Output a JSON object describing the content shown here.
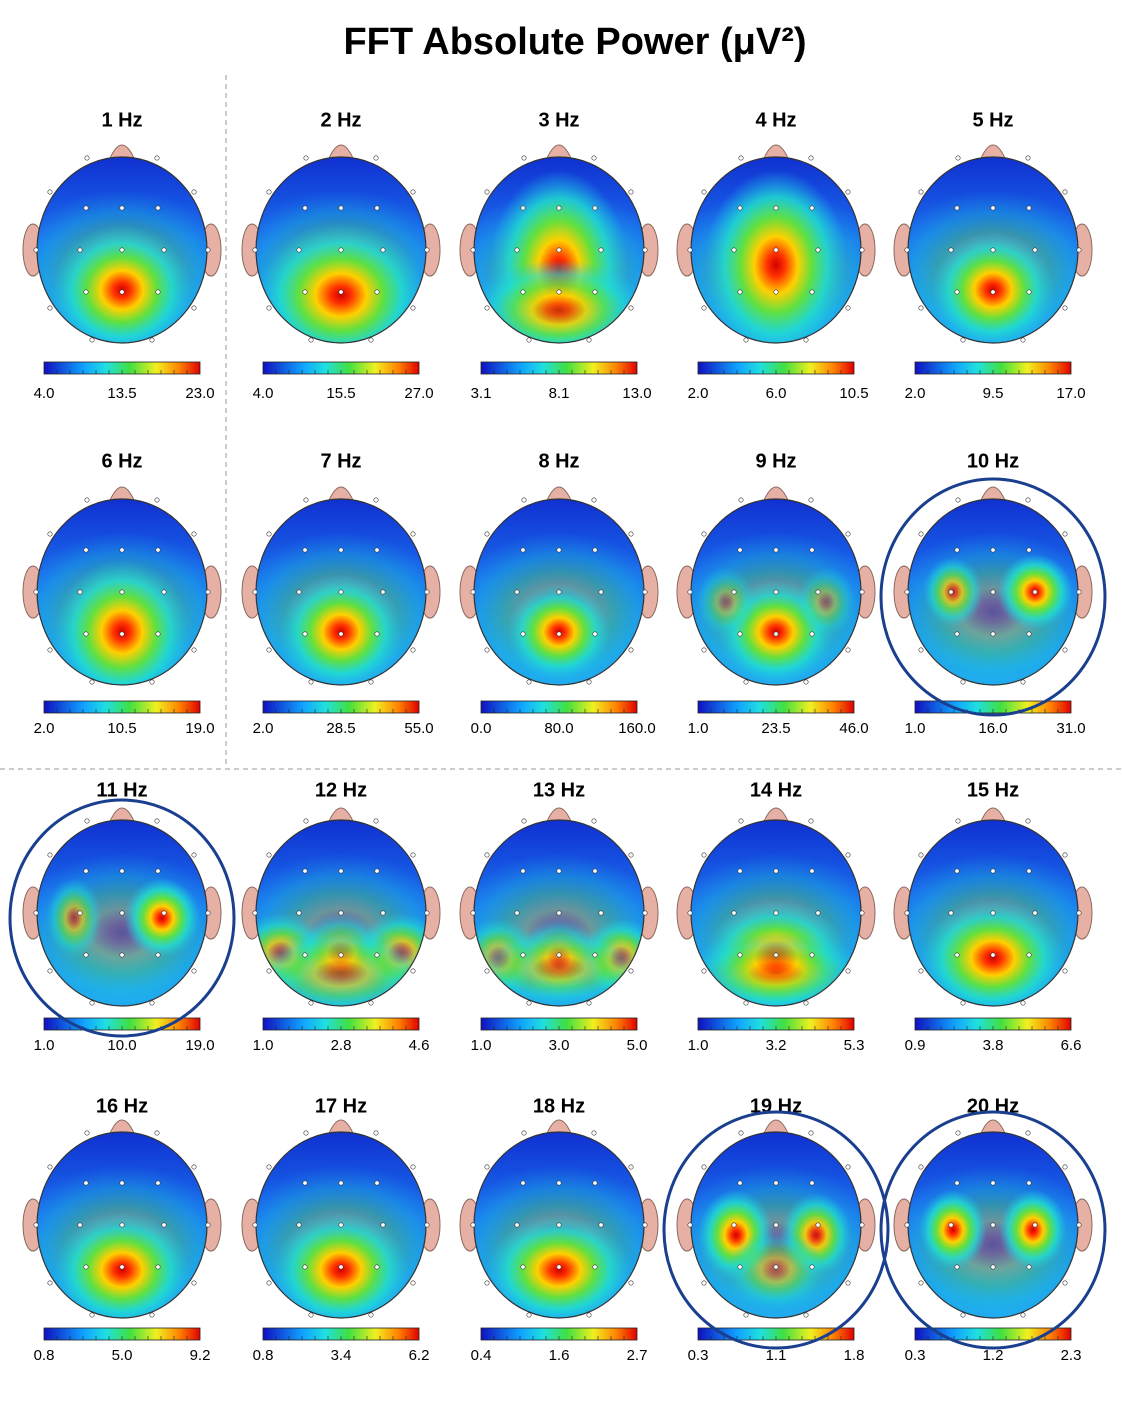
{
  "title": "FFT Absolute Power (μV²)",
  "maps": [
    {
      "title": "1 Hz",
      "scale": [
        "4.0",
        "13.5",
        "23.0"
      ],
      "highlighted": false
    },
    {
      "title": "2 Hz",
      "scale": [
        "4.0",
        "15.5",
        "27.0"
      ],
      "highlighted": false
    },
    {
      "title": "3 Hz",
      "scale": [
        "3.1",
        "8.1",
        "13.0"
      ],
      "highlighted": false
    },
    {
      "title": "4 Hz",
      "scale": [
        "2.0",
        "6.0",
        "10.5"
      ],
      "highlighted": false
    },
    {
      "title": "5 Hz",
      "scale": [
        "2.0",
        "9.5",
        "17.0"
      ],
      "highlighted": false
    },
    {
      "title": "6 Hz",
      "scale": [
        "2.0",
        "10.5",
        "19.0"
      ],
      "highlighted": false
    },
    {
      "title": "7 Hz",
      "scale": [
        "2.0",
        "28.5",
        "55.0"
      ],
      "highlighted": false
    },
    {
      "title": "8 Hz",
      "scale": [
        "0.0",
        "80.0",
        "160.0"
      ],
      "highlighted": false
    },
    {
      "title": "9 Hz",
      "scale": [
        "1.0",
        "23.5",
        "46.0"
      ],
      "highlighted": false
    },
    {
      "title": "10 Hz",
      "scale": [
        "1.0",
        "16.0",
        "31.0"
      ],
      "highlighted": true
    },
    {
      "title": "11 Hz",
      "scale": [
        "1.0",
        "10.0",
        "19.0"
      ],
      "highlighted": true
    },
    {
      "title": "12 Hz",
      "scale": [
        "1.0",
        "2.8",
        "4.6"
      ],
      "highlighted": false
    },
    {
      "title": "13 Hz",
      "scale": [
        "1.0",
        "3.0",
        "5.0"
      ],
      "highlighted": false
    },
    {
      "title": "14 Hz",
      "scale": [
        "1.0",
        "3.2",
        "5.3"
      ],
      "highlighted": false
    },
    {
      "title": "15 Hz",
      "scale": [
        "0.9",
        "3.8",
        "6.6"
      ],
      "highlighted": false
    },
    {
      "title": "16 Hz",
      "scale": [
        "0.8",
        "5.0",
        "9.2"
      ],
      "highlighted": false
    },
    {
      "title": "17 Hz",
      "scale": [
        "0.8",
        "3.4",
        "6.2"
      ],
      "highlighted": false
    },
    {
      "title": "18 Hz",
      "scale": [
        "0.4",
        "1.6",
        "2.7"
      ],
      "highlighted": false
    },
    {
      "title": "19 Hz",
      "scale": [
        "0.3",
        "1.1",
        "1.8"
      ],
      "highlighted": true
    },
    {
      "title": "20 Hz",
      "scale": [
        "0.3",
        "1.2",
        "2.3"
      ],
      "highlighted": true
    }
  ]
}
